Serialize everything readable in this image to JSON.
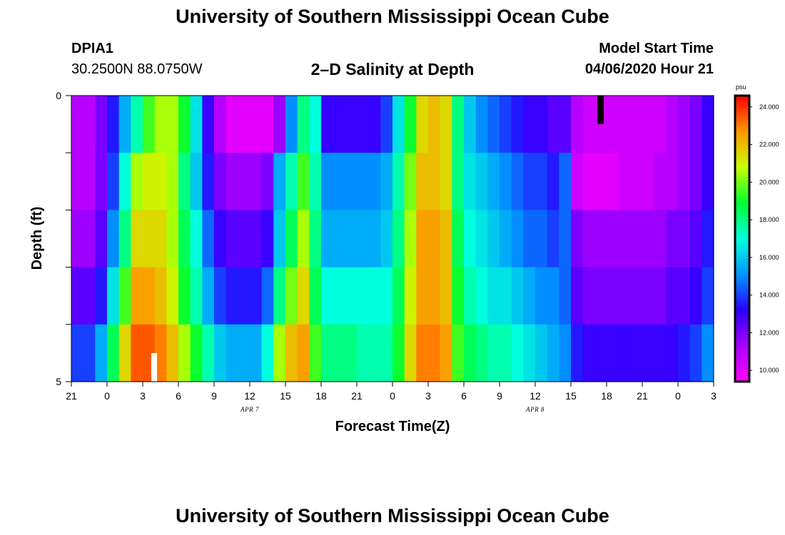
{
  "header": {
    "title": "University of Southern Mississippi Ocean Cube",
    "station": "DPIA1",
    "coordinates": "30.2500N 88.0750W",
    "chart_title": "2–D Salinity at Depth",
    "model_label": "Model Start Time",
    "model_time": "04/06/2020 Hour 21"
  },
  "footer": {
    "title": "University of Southern Mississippi Ocean Cube"
  },
  "chart_data": {
    "type": "heatmap",
    "title": "2–D Salinity at Depth",
    "xlabel": "Forecast Time(Z)",
    "ylabel": "Depth (ft)",
    "x_hours": [
      21,
      22,
      23,
      24,
      25,
      26,
      27,
      28,
      29,
      30,
      31,
      32,
      33,
      34,
      35,
      36,
      37,
      38,
      39,
      40,
      41,
      42,
      43,
      44,
      45,
      46,
      47,
      48,
      49,
      50,
      51,
      52,
      53,
      54,
      55,
      56,
      57,
      58,
      59,
      60,
      61,
      62,
      63,
      64,
      65,
      66,
      67,
      68,
      69,
      70,
      71,
      72,
      73,
      74,
      75
    ],
    "xlim": [
      21,
      75
    ],
    "x_tick_labels": [
      "21",
      "0",
      "3",
      "6",
      "9",
      "12",
      "15",
      "18",
      "21",
      "0",
      "3",
      "6",
      "9",
      "12",
      "15",
      "18",
      "21",
      "0",
      "3"
    ],
    "date_labels": [
      {
        "text": "APR 7",
        "hour": 36
      },
      {
        "text": "APR 8",
        "hour": 60
      }
    ],
    "y_tick_labels": [
      "0",
      "5"
    ],
    "ylim": [
      0,
      5
    ],
    "depth_levels": 5,
    "colorbar": {
      "unit": "psu",
      "range": [
        9.4,
        24.6
      ],
      "tick_labels": [
        "24.000",
        "22.000",
        "20.000",
        "18.000",
        "16.000",
        "14.000",
        "12.000",
        "10.000"
      ],
      "ticks": [
        24,
        22,
        20,
        18,
        16,
        14,
        12,
        10
      ]
    },
    "values": [
      [
        11.0,
        11.0,
        12.0,
        13.5,
        15.5,
        17.5,
        19.5,
        20.5,
        20.5,
        19.0,
        16.5,
        13.0,
        11.0,
        10.0,
        10.0,
        10.0,
        10.0,
        11.5,
        15.0,
        18.0,
        17.0,
        13.0,
        13.0,
        13.0,
        13.0,
        13.0,
        14.0,
        16.5,
        19.0,
        21.5,
        22.0,
        21.5,
        18.0,
        16.0,
        15.0,
        14.5,
        14.0,
        13.5,
        13.0,
        13.0,
        12.5,
        12.5,
        11.0,
        10.5,
        10.5,
        10.5,
        10.5,
        10.5,
        10.5,
        10.5,
        11.0,
        11.5,
        12.0,
        13.0
      ],
      [
        11.0,
        11.0,
        12.0,
        14.0,
        17.0,
        20.5,
        21.0,
        21.0,
        20.5,
        18.0,
        16.0,
        13.5,
        12.0,
        11.5,
        11.5,
        11.5,
        12.0,
        15.5,
        17.5,
        19.5,
        17.5,
        15.0,
        15.0,
        15.0,
        15.0,
        15.0,
        15.5,
        17.5,
        20.0,
        22.0,
        22.0,
        21.5,
        18.0,
        16.5,
        16.0,
        15.5,
        15.0,
        14.5,
        14.0,
        14.0,
        13.5,
        14.5,
        10.5,
        10.0,
        10.0,
        10.0,
        10.5,
        10.5,
        10.5,
        11.0,
        11.0,
        11.5,
        12.0,
        13.0
      ],
      [
        11.5,
        11.5,
        12.5,
        15.0,
        18.0,
        21.5,
        21.5,
        21.5,
        20.5,
        18.5,
        17.0,
        14.5,
        13.0,
        12.5,
        12.5,
        12.5,
        13.0,
        16.0,
        18.5,
        20.5,
        18.0,
        15.5,
        15.5,
        15.5,
        15.5,
        15.5,
        16.0,
        18.0,
        20.5,
        22.5,
        22.5,
        22.0,
        18.5,
        17.0,
        16.5,
        16.0,
        15.5,
        15.0,
        14.5,
        14.5,
        14.0,
        14.5,
        12.0,
        11.5,
        11.5,
        11.5,
        11.5,
        11.5,
        11.5,
        11.5,
        12.0,
        12.0,
        12.5,
        13.5
      ],
      [
        12.5,
        12.5,
        13.5,
        16.5,
        19.5,
        22.5,
        22.5,
        22.0,
        21.0,
        19.0,
        17.5,
        15.5,
        14.0,
        13.5,
        13.5,
        13.5,
        14.5,
        18.0,
        20.0,
        21.5,
        18.5,
        17.0,
        17.0,
        17.0,
        17.0,
        17.0,
        17.0,
        18.5,
        21.0,
        22.5,
        22.5,
        22.0,
        19.0,
        17.5,
        17.0,
        16.5,
        16.5,
        16.0,
        15.5,
        15.0,
        15.0,
        14.5,
        12.5,
        12.0,
        12.0,
        12.0,
        12.0,
        12.0,
        12.0,
        12.0,
        12.5,
        12.5,
        13.0,
        14.0
      ],
      [
        14.0,
        14.0,
        15.5,
        18.5,
        21.5,
        23.5,
        23.5,
        23.0,
        22.0,
        20.5,
        19.0,
        17.5,
        16.0,
        15.5,
        15.5,
        15.5,
        17.0,
        20.5,
        22.0,
        22.5,
        19.5,
        18.0,
        18.0,
        18.0,
        17.5,
        17.5,
        17.5,
        19.0,
        21.5,
        23.0,
        23.0,
        22.5,
        19.5,
        18.5,
        18.0,
        17.5,
        17.5,
        17.0,
        16.5,
        16.0,
        15.5,
        15.0,
        13.5,
        13.0,
        13.0,
        13.0,
        13.0,
        13.0,
        13.0,
        13.0,
        13.0,
        13.5,
        14.0,
        15.0
      ]
    ]
  }
}
